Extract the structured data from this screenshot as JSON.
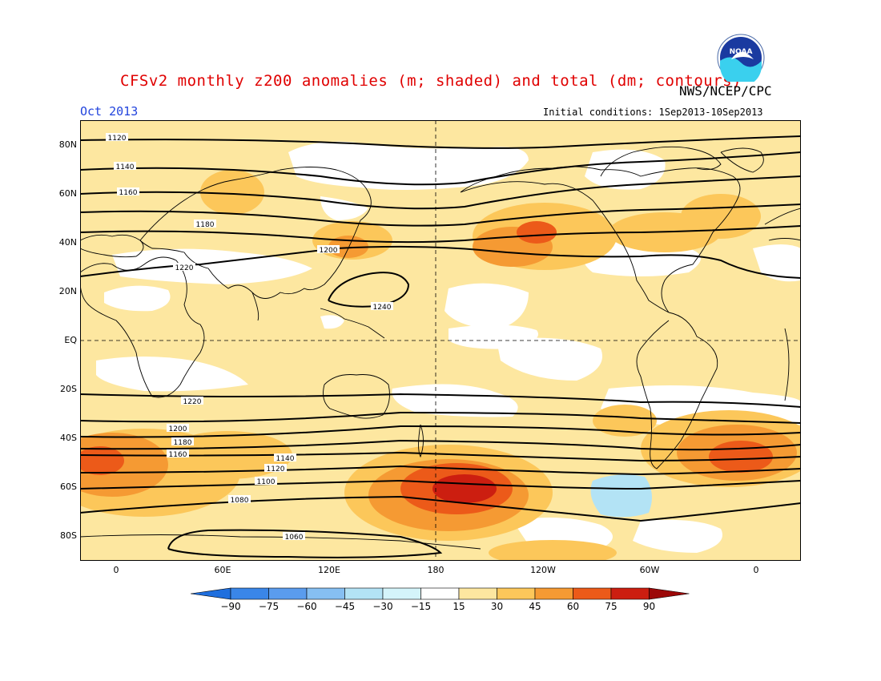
{
  "header": {
    "title": "CFSv2 monthly z200 anomalies (m; shaded) and total (dm; contours)",
    "agency": "NWS/NCEP/CPC",
    "month": "Oct 2013",
    "initial_conditions": "Initial conditions: 1Sep2013-10Sep2013",
    "logo_text": "NOAA"
  },
  "axes": {
    "lat_labels": [
      "80N",
      "60N",
      "40N",
      "20N",
      "EQ",
      "20S",
      "40S",
      "60S",
      "80S"
    ],
    "lon_labels": [
      "0",
      "60E",
      "120E",
      "180",
      "120W",
      "60W",
      "0"
    ]
  },
  "contours": {
    "labels": [
      "1120",
      "1140",
      "1160",
      "1180",
      "1200",
      "1220",
      "1240",
      "1220",
      "1200",
      "1180",
      "1160",
      "1140",
      "1120",
      "1100",
      "1080",
      "1060"
    ]
  },
  "colorbar": {
    "ticks": [
      "-90",
      "-75",
      "-60",
      "-45",
      "-30",
      "-15",
      "15",
      "30",
      "45",
      "60",
      "75",
      "90"
    ],
    "colors": [
      "#1f6fde",
      "#3a86e8",
      "#5a9cee",
      "#86bff2",
      "#b3e3f5",
      "#d4f4fa",
      "#ffffff",
      "#fde7a0",
      "#fcc75a",
      "#f59a33",
      "#ec5a19",
      "#cc1e10",
      "#9c0808"
    ]
  },
  "colors": {
    "title": "#e00000",
    "month": "#2244dd",
    "weak_positive": "#fde7a0",
    "moderate_positive": "#fcc75a",
    "strong_positive": "#f59a33",
    "very_strong_positive": "#ec5a19",
    "extreme_positive": "#cc1e10",
    "negative": "#b3e3f5"
  }
}
